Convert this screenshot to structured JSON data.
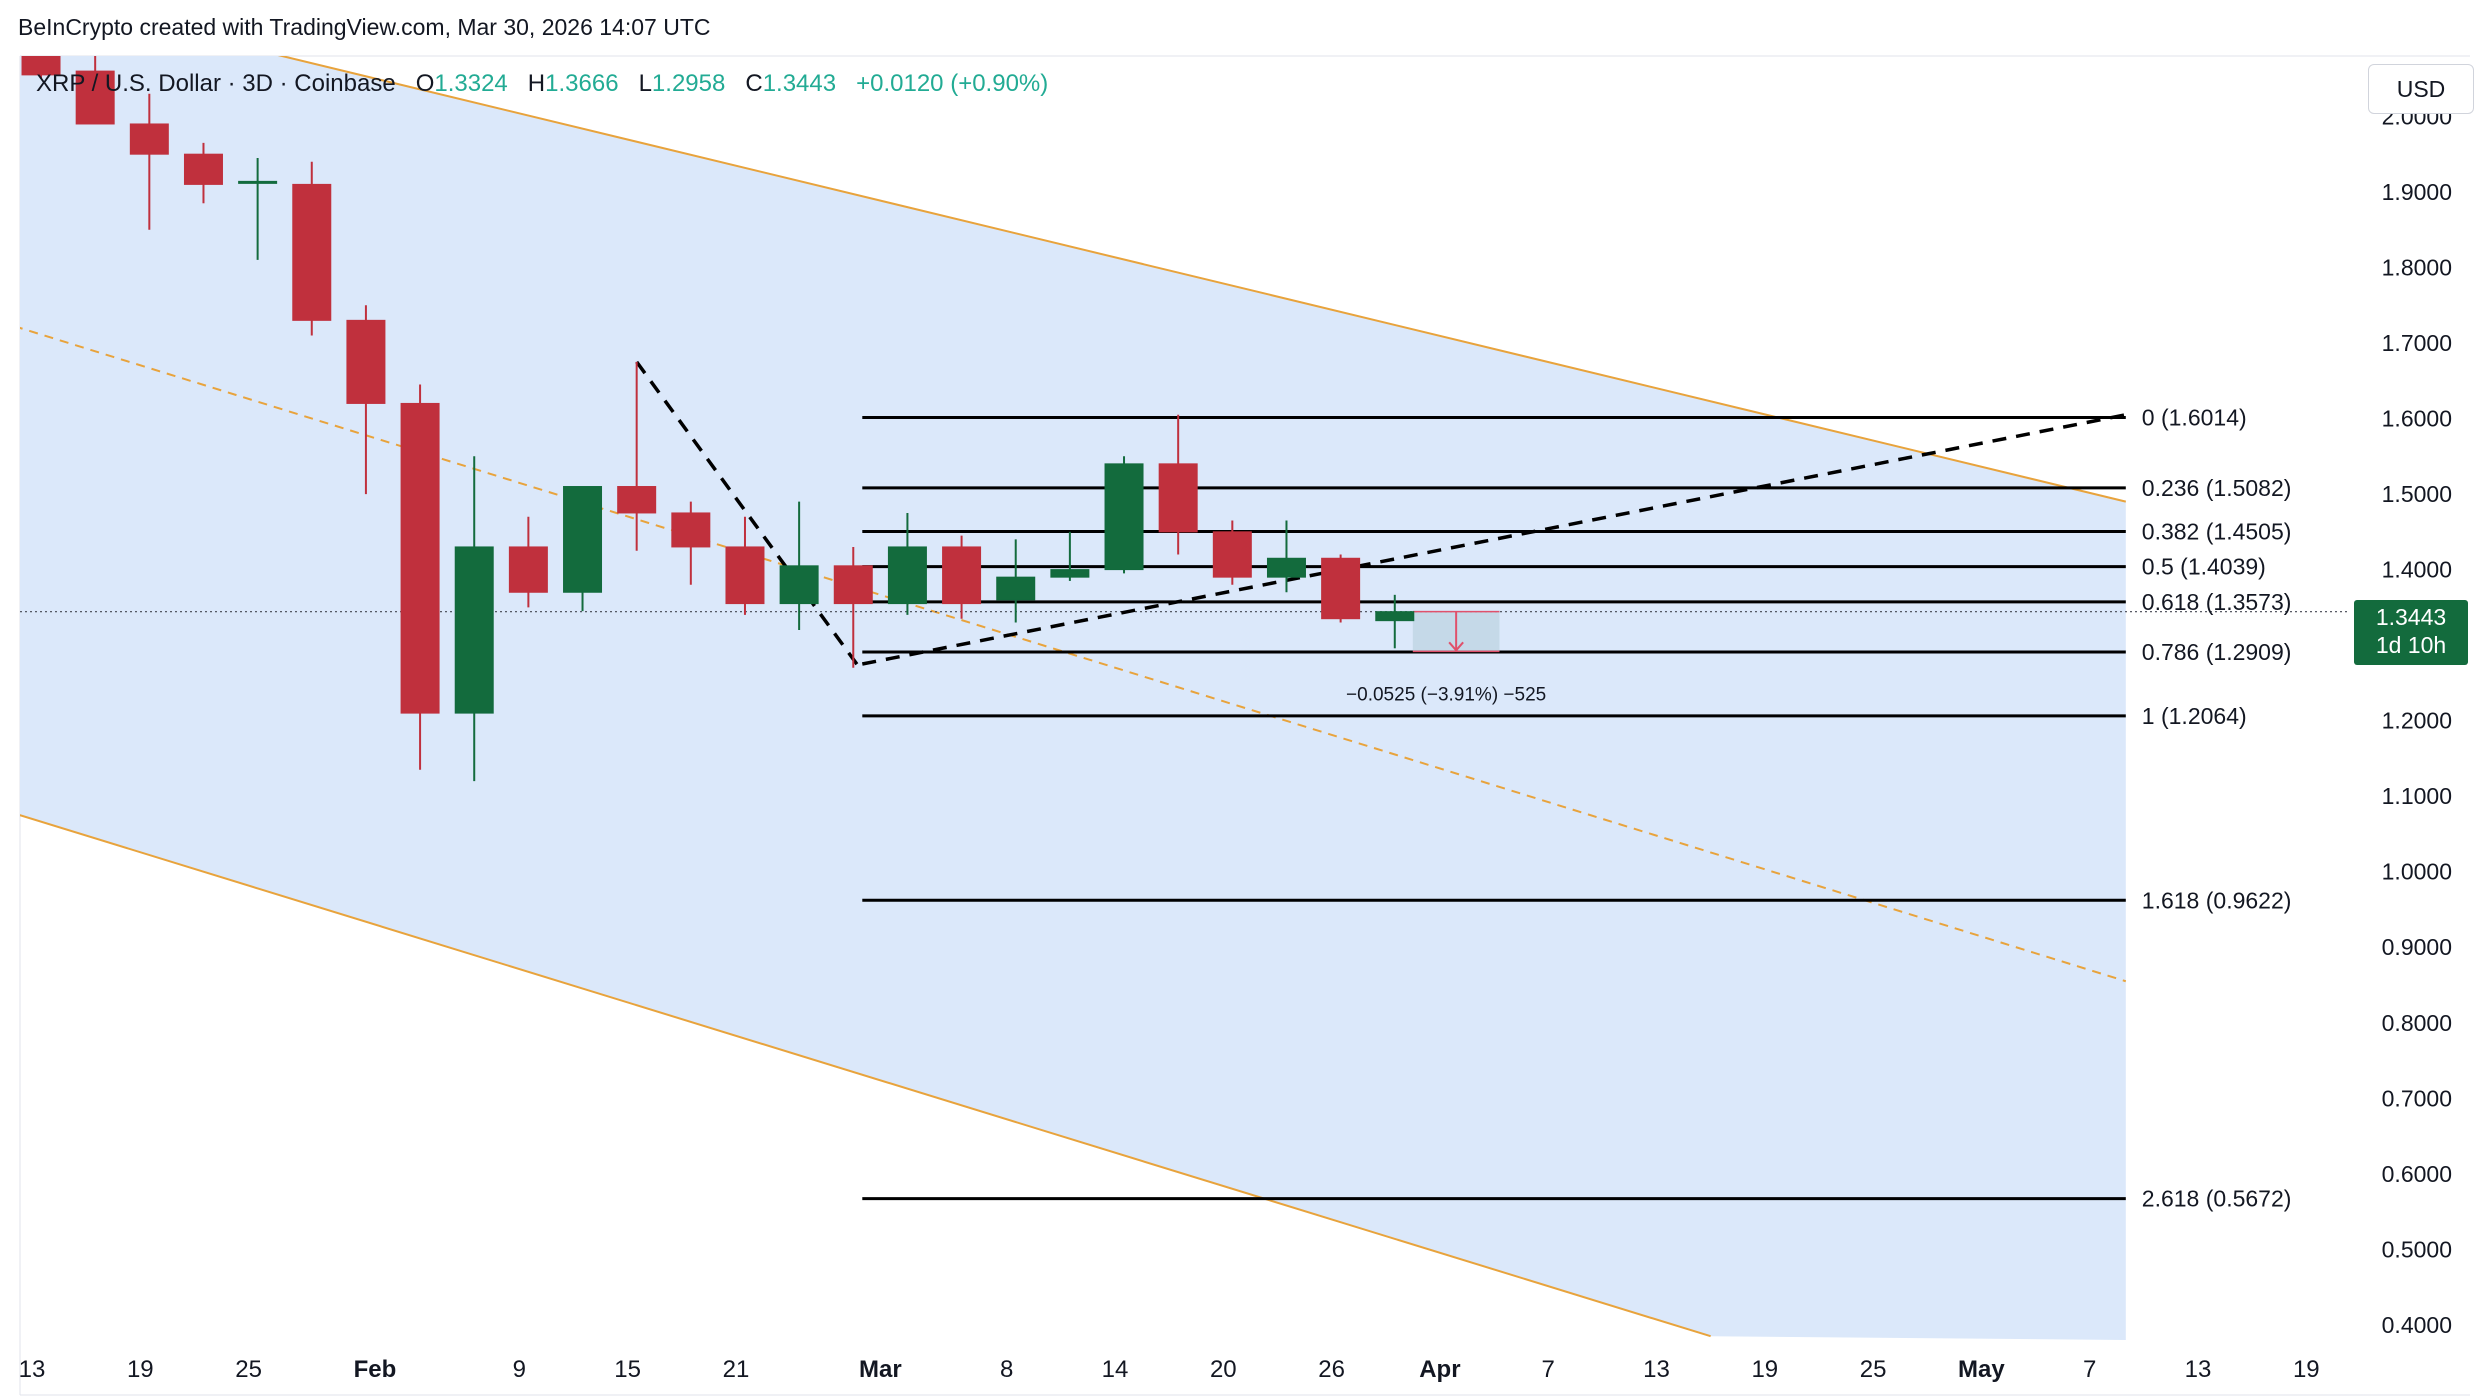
{
  "header": {
    "credit": "BeInCrypto created with TradingView.com, Mar 30, 2026 14:07 UTC"
  },
  "legend": {
    "symbol": "XRP / U.S. Dollar · 3D · Coinbase",
    "open_label": "O",
    "open": "1.3324",
    "high_label": "H",
    "high": "1.3666",
    "low_label": "L",
    "low": "1.2958",
    "close_label": "C",
    "close": "1.3443",
    "change": "+0.0120 (+0.90%)"
  },
  "toolbar": {
    "currency": "USD"
  },
  "price_tag": {
    "price": "1.3443",
    "countdown": "1d 10h"
  },
  "colors": {
    "up": "#136b3d",
    "down": "#c0303d",
    "channel_fill": "#dbe8fa",
    "channel_line": "#e8a33c",
    "fib_line": "#000000"
  },
  "chart_data": {
    "type": "candlestick",
    "timeframe": "3D",
    "ylim": [
      0.38,
      2.08
    ],
    "y_ticks": [
      "2.0000",
      "1.9000",
      "1.8000",
      "1.7000",
      "1.6000",
      "1.5000",
      "1.4000",
      "1.3000",
      "1.2000",
      "1.1000",
      "1.0000",
      "0.9000",
      "0.8000",
      "0.7000",
      "0.6000",
      "0.5000",
      "0.4000"
    ],
    "x_ticks": [
      {
        "label": "13",
        "day": 0,
        "bold": false
      },
      {
        "label": "19",
        "day": 6,
        "bold": false
      },
      {
        "label": "25",
        "day": 12,
        "bold": false
      },
      {
        "label": "Feb",
        "day": 19,
        "bold": true
      },
      {
        "label": "9",
        "day": 27,
        "bold": false
      },
      {
        "label": "15",
        "day": 33,
        "bold": false
      },
      {
        "label": "21",
        "day": 39,
        "bold": false
      },
      {
        "label": "Mar",
        "day": 47,
        "bold": true
      },
      {
        "label": "8",
        "day": 54,
        "bold": false
      },
      {
        "label": "14",
        "day": 60,
        "bold": false
      },
      {
        "label": "20",
        "day": 66,
        "bold": false
      },
      {
        "label": "26",
        "day": 72,
        "bold": false
      },
      {
        "label": "Apr",
        "day": 78,
        "bold": true
      },
      {
        "label": "7",
        "day": 84,
        "bold": false
      },
      {
        "label": "13",
        "day": 90,
        "bold": false
      },
      {
        "label": "19",
        "day": 96,
        "bold": false
      },
      {
        "label": "25",
        "day": 102,
        "bold": false
      },
      {
        "label": "May",
        "day": 108,
        "bold": true
      },
      {
        "label": "7",
        "day": 114,
        "bold": false
      },
      {
        "label": "13",
        "day": 120,
        "bold": false
      },
      {
        "label": "19",
        "day": 126,
        "bold": false
      }
    ],
    "candles": [
      {
        "day": 0.5,
        "o": 2.08,
        "h": 2.09,
        "l": 2.05,
        "c": 2.055
      },
      {
        "day": 3.5,
        "o": 2.06,
        "h": 2.08,
        "l": 1.99,
        "c": 1.99
      },
      {
        "day": 6.5,
        "o": 1.99,
        "h": 2.03,
        "l": 1.85,
        "c": 1.95
      },
      {
        "day": 9.5,
        "o": 1.95,
        "h": 1.965,
        "l": 1.885,
        "c": 1.91
      },
      {
        "day": 12.5,
        "o": 1.912,
        "h": 1.945,
        "l": 1.81,
        "c": 1.914
      },
      {
        "day": 15.5,
        "o": 1.91,
        "h": 1.94,
        "l": 1.71,
        "c": 1.73
      },
      {
        "day": 18.5,
        "o": 1.73,
        "h": 1.75,
        "l": 1.5,
        "c": 1.62
      },
      {
        "day": 21.5,
        "o": 1.62,
        "h": 1.645,
        "l": 1.135,
        "c": 1.21
      },
      {
        "day": 24.5,
        "o": 1.21,
        "h": 1.55,
        "l": 1.12,
        "c": 1.43
      },
      {
        "day": 27.5,
        "o": 1.43,
        "h": 1.47,
        "l": 1.35,
        "c": 1.37
      },
      {
        "day": 30.5,
        "o": 1.37,
        "h": 1.51,
        "l": 1.345,
        "c": 1.51
      },
      {
        "day": 33.5,
        "o": 1.51,
        "h": 1.675,
        "l": 1.425,
        "c": 1.475
      },
      {
        "day": 36.5,
        "o": 1.475,
        "h": 1.49,
        "l": 1.38,
        "c": 1.43
      },
      {
        "day": 39.5,
        "o": 1.43,
        "h": 1.47,
        "l": 1.34,
        "c": 1.355
      },
      {
        "day": 42.5,
        "o": 1.355,
        "h": 1.49,
        "l": 1.32,
        "c": 1.405
      },
      {
        "day": 45.5,
        "o": 1.405,
        "h": 1.43,
        "l": 1.27,
        "c": 1.355
      },
      {
        "day": 48.5,
        "o": 1.355,
        "h": 1.475,
        "l": 1.34,
        "c": 1.43
      },
      {
        "day": 51.5,
        "o": 1.43,
        "h": 1.445,
        "l": 1.335,
        "c": 1.355
      },
      {
        "day": 54.5,
        "o": 1.36,
        "h": 1.44,
        "l": 1.33,
        "c": 1.39
      },
      {
        "day": 57.5,
        "o": 1.39,
        "h": 1.45,
        "l": 1.385,
        "c": 1.4
      },
      {
        "day": 60.5,
        "o": 1.4,
        "h": 1.55,
        "l": 1.395,
        "c": 1.54
      },
      {
        "day": 63.5,
        "o": 1.54,
        "h": 1.605,
        "l": 1.42,
        "c": 1.45
      },
      {
        "day": 66.5,
        "o": 1.45,
        "h": 1.465,
        "l": 1.38,
        "c": 1.39
      },
      {
        "day": 69.5,
        "o": 1.39,
        "h": 1.465,
        "l": 1.37,
        "c": 1.415
      },
      {
        "day": 72.5,
        "o": 1.415,
        "h": 1.42,
        "l": 1.33,
        "c": 1.335
      },
      {
        "day": 75.5,
        "o": 1.3324,
        "h": 1.3666,
        "l": 1.2958,
        "c": 1.3443
      }
    ],
    "fibonacci": [
      {
        "label": "0 (1.6014)",
        "price": 1.6014
      },
      {
        "label": "0.236 (1.5082)",
        "price": 1.5082
      },
      {
        "label": "0.382 (1.4505)",
        "price": 1.4505
      },
      {
        "label": "0.5 (1.4039)",
        "price": 1.4039
      },
      {
        "label": "0.618 (1.3573)",
        "price": 1.3573
      },
      {
        "label": "0.786 (1.2909)",
        "price": 1.2909
      },
      {
        "label": "1 (1.2064)",
        "price": 1.2064
      },
      {
        "label": "1.618 (0.9622)",
        "price": 0.9622
      },
      {
        "label": "2.618 (0.5672)",
        "price": 0.5672
      }
    ],
    "fib_start_day": 46,
    "fib_end_day": 116,
    "channel": {
      "upper": [
        [
          0,
          2.16
        ],
        [
          116,
          1.49
        ]
      ],
      "middle": [
        [
          0,
          1.715
        ],
        [
          116,
          0.855
        ]
      ],
      "lower": [
        [
          0,
          1.07
        ],
        [
          93,
          0.385
        ]
      ]
    },
    "trendlines": [
      {
        "from": [
          33.5,
          1.675
        ],
        "to": [
          46,
          1.265
        ]
      },
      {
        "from": [
          46,
          1.275
        ],
        "to": [
          116,
          1.605
        ]
      }
    ],
    "measure": {
      "from_day": 76.5,
      "to_day": 81.3,
      "from_price": 1.3443,
      "to_price": 1.2918,
      "label": "−0.0525 (−3.91%) −525"
    },
    "current_price": 1.3443
  }
}
